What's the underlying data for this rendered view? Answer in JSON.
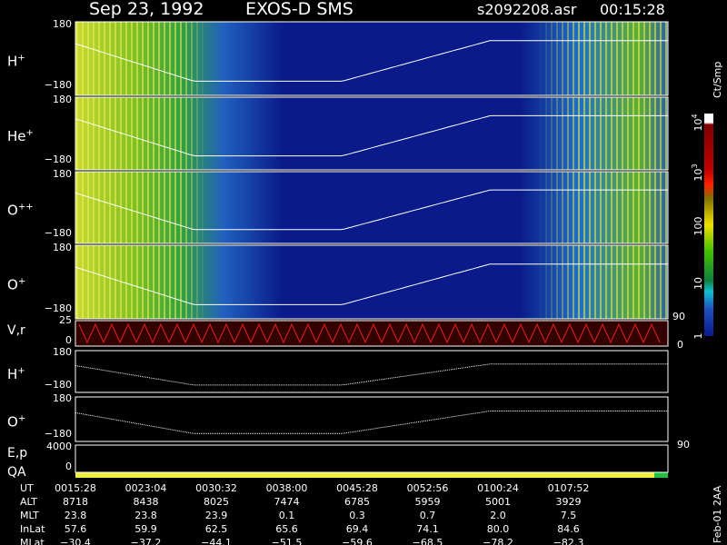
{
  "header": {
    "date": "Sep 23, 1992",
    "instrument": "EXOS-D SMS",
    "file": "s2092208.asr",
    "time": "00:15:28"
  },
  "panels": [
    {
      "label": "H",
      "charge": "+",
      "top": "180",
      "bottom": "−180"
    },
    {
      "label": "He",
      "charge": "+",
      "top": "180",
      "bottom": "−180"
    },
    {
      "label": "O",
      "charge": "++",
      "top": "180",
      "bottom": "−180"
    },
    {
      "label": "O",
      "charge": "+",
      "top": "180",
      "bottom": "−180"
    }
  ],
  "velocity_panel": {
    "label": "V,r",
    "top": "25",
    "zero": "0",
    "right_top": "90",
    "right_bottom": "0"
  },
  "line_panels": [
    {
      "label": "H",
      "charge": "+",
      "top": "180",
      "bottom": "−180"
    },
    {
      "label": "O",
      "charge": "+",
      "top": "180",
      "bottom": "−180"
    }
  ],
  "energy_panel": {
    "label": "E,p",
    "top": "4000",
    "zero": "0",
    "right": "90"
  },
  "qa_label": "QA",
  "colorbar": {
    "unit": "Ct/Smp",
    "labels": [
      {
        "base": "10",
        "exp": "4"
      },
      {
        "base": "10",
        "exp": "3"
      },
      {
        "base": "100",
        "exp": ""
      },
      {
        "base": "10",
        "exp": ""
      },
      {
        "base": "1",
        "exp": ""
      }
    ]
  },
  "table": {
    "rows": [
      [
        "UT",
        "0015:28",
        "0023:04",
        "0030:32",
        "0038:00",
        "0045:28",
        "0052:56",
        "0100:24",
        "0107:52"
      ],
      [
        "ALT",
        "8718",
        "8438",
        "8025",
        "7474",
        "6785",
        "5959",
        "5001",
        "3929"
      ],
      [
        "MLT",
        "23.8",
        "23.8",
        "23.9",
        "0.1",
        "0.3",
        "0.7",
        "2.0",
        "7.5"
      ],
      [
        "InLat",
        "57.6",
        "59.9",
        "62.5",
        "65.6",
        "69.4",
        "74.1",
        "80.0",
        "84.6"
      ],
      [
        "MLat",
        "−30.4",
        "−37.2",
        "−44.1",
        "−51.5",
        "−59.6",
        "−68.5",
        "−78.2",
        "−82.3"
      ]
    ]
  },
  "footer": "Feb-01 2AA"
}
